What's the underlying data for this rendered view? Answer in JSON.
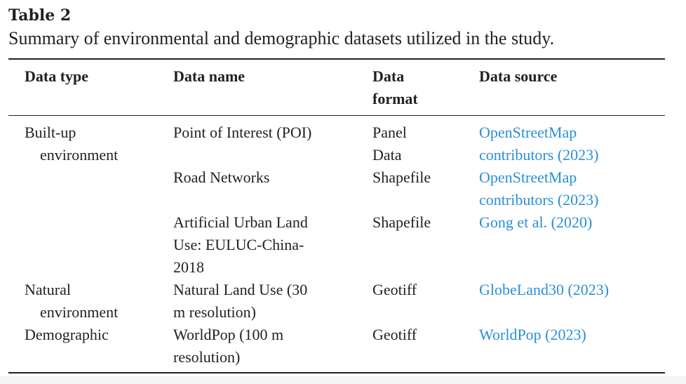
{
  "table": {
    "label": "Table 2",
    "caption": "Summary of environmental and demographic datasets utilized in the study.",
    "headers": {
      "data_type": "Data type",
      "data_name": "Data name",
      "data_format_1": "Data",
      "data_format_2": "format",
      "data_source": "Data source"
    },
    "rows": [
      {
        "type_1": "Built-up",
        "type_2": "environment",
        "name_1": "Point of Interest (POI)",
        "format_1": "Panel",
        "format_2": "Data",
        "source_1": "OpenStreetMap",
        "source_2": "contributors (2023)"
      },
      {
        "name_1": "Road Networks",
        "format_1": "Shapefile",
        "source_1": "OpenStreetMap",
        "source_2": "contributors (2023)"
      },
      {
        "name_1": "Artificial Urban Land",
        "name_2": "Use: EULUC-China-",
        "name_3": "2018",
        "format_1": "Shapefile",
        "source_1": "Gong et al. (2020)"
      },
      {
        "type_1": "Natural",
        "type_2": "environment",
        "name_1": "Natural Land Use (30",
        "name_2": "m resolution)",
        "format_1": "Geotiff",
        "source_1": "GlobeLand30 (2023)"
      },
      {
        "type_1": "Demographic",
        "name_1": "WorldPop (100 m",
        "name_2": "resolution)",
        "format_1": "Geotiff",
        "source_1": "WorldPop (2023)"
      }
    ],
    "link_color": "#2a8fd6"
  }
}
